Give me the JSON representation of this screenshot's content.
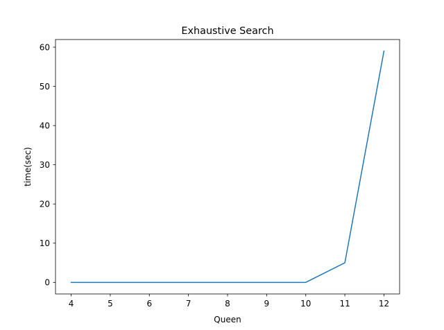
{
  "chart_data": {
    "type": "line",
    "title": "Exhaustive Search",
    "xlabel": "Queen",
    "ylabel": "time(sec)",
    "x": [
      4,
      5,
      6,
      7,
      8,
      9,
      10,
      11,
      12
    ],
    "series": [
      {
        "values": [
          0,
          0,
          0,
          0,
          0,
          0,
          0,
          5,
          59
        ],
        "color": "#1f77b4"
      }
    ],
    "xlim": [
      3.6,
      12.4
    ],
    "ylim": [
      -2.95,
      61.95
    ],
    "xticks": [
      4,
      5,
      6,
      7,
      8,
      9,
      10,
      11,
      12
    ],
    "yticks": [
      0,
      10,
      20,
      30,
      40,
      50,
      60
    ],
    "grid": false,
    "legend": "none"
  }
}
